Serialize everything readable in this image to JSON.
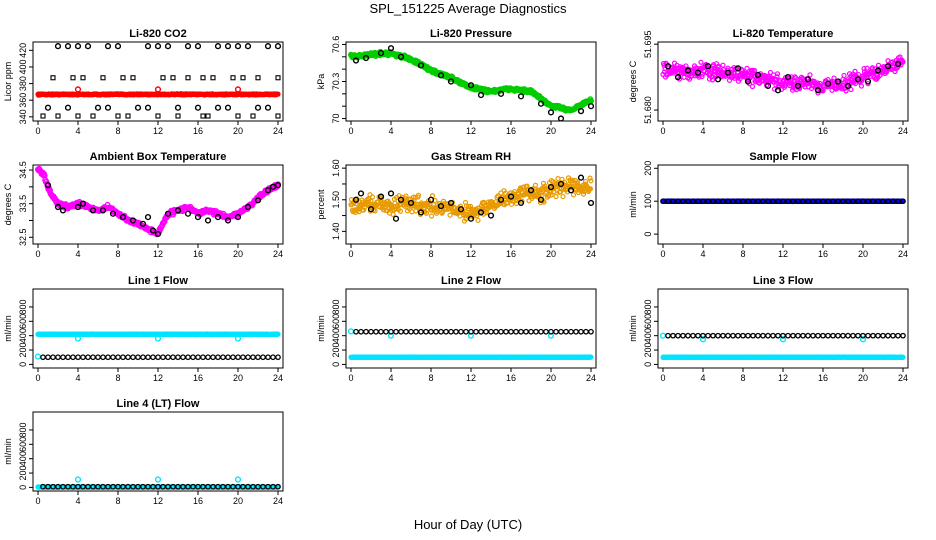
{
  "page": {
    "title": "SPL_151225  Average Diagnostics",
    "xlabel": "Hour of Day (UTC)"
  },
  "chart_data": [
    {
      "type": "scatter",
      "title": "Li-820 CO2",
      "ylabel": "Licor ppm",
      "ylim": [
        335,
        430
      ],
      "yticks": [
        340,
        360,
        380,
        400,
        420
      ],
      "xlim": [
        -0.5,
        24.5
      ],
      "xticks": [
        0,
        4,
        8,
        12,
        16,
        20,
        24
      ],
      "series": [
        {
          "color": "#ff0000",
          "style": "dense-line",
          "x_range": [
            0,
            24
          ],
          "mean": 367,
          "noise": 1
        },
        {
          "color": "#ff0000",
          "style": "ring",
          "x": [
            4,
            12,
            20
          ],
          "values": [
            373,
            373,
            373
          ]
        },
        {
          "color": "#000000",
          "style": "ring",
          "x": [
            2,
            3,
            4,
            5,
            7,
            8,
            11,
            12,
            13,
            15,
            16,
            18,
            19,
            20,
            21,
            23,
            24
          ],
          "values": [
            425,
            425,
            425,
            425,
            425,
            425,
            425,
            425,
            425,
            425,
            425,
            425,
            425,
            425,
            425,
            425,
            425
          ]
        },
        {
          "color": "#000000",
          "style": "square",
          "x": [
            1.5,
            3.5,
            4.5,
            6.5,
            8.5,
            9.5,
            12.5,
            13.5,
            15,
            16.5,
            17.5,
            19.5,
            20.5,
            22,
            24
          ],
          "values": [
            387,
            387,
            387,
            387,
            387,
            387,
            387,
            387,
            387,
            387,
            387,
            387,
            387,
            387,
            387
          ]
        },
        {
          "color": "#000000",
          "style": "ring",
          "x": [
            1,
            3,
            6,
            7,
            10,
            11,
            14,
            16,
            18,
            19,
            22,
            23
          ],
          "values": [
            351,
            351,
            351,
            351,
            351,
            351,
            351,
            351,
            351,
            351,
            351,
            351
          ]
        },
        {
          "color": "#000000",
          "style": "square",
          "x": [
            0.5,
            2,
            4,
            5.5,
            8,
            9,
            12,
            14,
            16.5,
            17,
            20,
            21.5,
            24
          ],
          "values": [
            341,
            341,
            341,
            341,
            341,
            341,
            341,
            341,
            341,
            341,
            341,
            341,
            341
          ]
        }
      ]
    },
    {
      "type": "scatter",
      "title": "Li-820 Pressure",
      "ylabel": "kPa",
      "ylim": [
        69.98,
        70.62
      ],
      "yticks": [
        70.0,
        70.3,
        70.6
      ],
      "yticks_minor": [
        70.1,
        70.2,
        70.4,
        70.5
      ],
      "xlim": [
        -0.5,
        24.5
      ],
      "xticks": [
        0,
        4,
        8,
        12,
        16,
        20,
        24
      ],
      "series": [
        {
          "color": "#00cc00",
          "style": "dense-band",
          "x": [
            0,
            2,
            4,
            6,
            8,
            10,
            12,
            14,
            16,
            18,
            20,
            22,
            24
          ],
          "values": [
            70.5,
            70.52,
            70.53,
            70.48,
            70.39,
            70.33,
            70.25,
            70.22,
            70.24,
            70.22,
            70.1,
            70.07,
            70.15
          ],
          "noise": 0.02
        },
        {
          "color": "#000000",
          "style": "ring",
          "x": [
            0.5,
            1.5,
            3,
            4,
            5,
            7,
            9,
            10,
            12,
            13,
            15,
            17,
            19,
            20,
            21,
            23,
            24
          ],
          "values": [
            70.47,
            70.49,
            70.53,
            70.57,
            70.5,
            70.43,
            70.35,
            70.3,
            70.27,
            70.19,
            70.2,
            70.18,
            70.12,
            70.05,
            70.0,
            70.06,
            70.1
          ]
        }
      ]
    },
    {
      "type": "scatter",
      "title": "Li-820 Temperature",
      "ylabel": "degrees C",
      "ylim": [
        51.6775,
        51.6955
      ],
      "yticks": [
        51.68,
        51.695
      ],
      "ytick_labels": [
        "51.680",
        "51.695"
      ],
      "xlim": [
        -0.5,
        24.5
      ],
      "xticks": [
        0,
        4,
        8,
        12,
        16,
        20,
        24
      ],
      "series": [
        {
          "color": "#ff00ff",
          "style": "cloud",
          "x": [
            0,
            2,
            4,
            6,
            8,
            10,
            12,
            14,
            16,
            18,
            20,
            22,
            24
          ],
          "values": [
            51.689,
            51.6885,
            51.689,
            51.6885,
            51.688,
            51.687,
            51.686,
            51.6865,
            51.6855,
            51.686,
            51.6875,
            51.689,
            51.691
          ],
          "noise": 0.0025
        },
        {
          "color": "#000000",
          "style": "ring",
          "x": [
            0.5,
            1.5,
            2.5,
            3.5,
            4.5,
            5.5,
            6.5,
            7.5,
            8.5,
            9.5,
            10.5,
            11.5,
            12.5,
            13.5,
            14.5,
            15.5,
            16.5,
            17.5,
            18.5,
            19.5,
            20.5,
            21.5,
            22.5,
            23.5
          ],
          "values": [
            51.69,
            51.6875,
            51.689,
            51.6885,
            51.69,
            51.687,
            51.6885,
            51.6895,
            51.6865,
            51.688,
            51.6855,
            51.6845,
            51.6875,
            51.6855,
            51.687,
            51.6845,
            51.686,
            51.6865,
            51.6855,
            51.687,
            51.6865,
            51.689,
            51.69,
            51.6905
          ]
        }
      ]
    },
    {
      "type": "scatter",
      "title": "Ambient Box Temperature",
      "ylabel": "degrees C",
      "ylim": [
        32.3,
        34.65
      ],
      "yticks": [
        32.5,
        33.5,
        34.5
      ],
      "yticks_minor": [
        33.0,
        34.0
      ],
      "xlim": [
        -0.5,
        24.5
      ],
      "xticks": [
        0,
        4,
        8,
        12,
        16,
        20,
        24
      ],
      "series": [
        {
          "color": "#ff00ff",
          "style": "dense-band",
          "x": [
            0,
            0.5,
            1,
            1.5,
            2,
            3,
            4,
            5,
            6,
            7,
            8,
            9,
            10,
            11,
            12,
            13,
            14,
            15,
            16,
            17,
            18,
            19,
            20,
            21,
            22,
            23,
            24
          ],
          "values": [
            34.55,
            34.4,
            34.0,
            33.7,
            33.5,
            33.4,
            33.5,
            33.4,
            33.3,
            33.4,
            33.2,
            33.0,
            32.9,
            32.75,
            32.6,
            33.2,
            33.3,
            33.4,
            33.2,
            33.3,
            33.2,
            33.1,
            33.2,
            33.4,
            33.65,
            33.9,
            34.05
          ],
          "noise": 0.08
        },
        {
          "color": "#000000",
          "style": "ring",
          "x": [
            1,
            2,
            2.5,
            4,
            4.5,
            5.5,
            6.5,
            7.5,
            8.5,
            9.5,
            10.5,
            11,
            11.5,
            12,
            13,
            14,
            15,
            16,
            17,
            18,
            19,
            20,
            21,
            22,
            23,
            23.5,
            24
          ],
          "values": [
            34.05,
            33.4,
            33.3,
            33.4,
            33.5,
            33.3,
            33.3,
            33.2,
            33.1,
            33.0,
            32.9,
            33.1,
            32.7,
            32.6,
            33.2,
            33.3,
            33.2,
            33.1,
            33.0,
            33.1,
            33.0,
            33.1,
            33.4,
            33.6,
            33.9,
            34.0,
            34.05
          ]
        }
      ]
    },
    {
      "type": "scatter",
      "title": "Gas Stream RH",
      "ylabel": "percent",
      "ylim": [
        1.36,
        1.61
      ],
      "yticks": [
        1.4,
        1.5,
        1.6
      ],
      "ytick_labels": [
        "1.40",
        "1.50",
        "1.60"
      ],
      "yticks_minor": [
        1.45,
        1.55
      ],
      "xlim": [
        -0.5,
        24.5
      ],
      "xticks": [
        0,
        4,
        8,
        12,
        16,
        20,
        24
      ],
      "series": [
        {
          "color": "#e89a00",
          "style": "cloud",
          "x": [
            0,
            2,
            4,
            6,
            8,
            10,
            12,
            14,
            16,
            18,
            20,
            22,
            24
          ],
          "values": [
            1.48,
            1.49,
            1.48,
            1.49,
            1.48,
            1.47,
            1.46,
            1.48,
            1.51,
            1.52,
            1.53,
            1.55,
            1.54
          ],
          "noise": 0.04
        },
        {
          "color": "#000000",
          "style": "ring",
          "x": [
            0.5,
            1,
            2,
            3,
            4,
            4.5,
            5,
            6,
            7,
            8,
            9,
            10,
            11,
            12,
            13,
            14,
            15,
            16,
            17,
            18,
            19,
            20,
            21,
            22,
            23,
            24
          ],
          "values": [
            1.5,
            1.52,
            1.47,
            1.51,
            1.52,
            1.44,
            1.5,
            1.49,
            1.46,
            1.5,
            1.48,
            1.49,
            1.47,
            1.44,
            1.46,
            1.45,
            1.5,
            1.51,
            1.49,
            1.53,
            1.5,
            1.54,
            1.55,
            1.53,
            1.57,
            1.49
          ]
        }
      ]
    },
    {
      "type": "scatter",
      "title": "Sample Flow",
      "ylabel": "ml/min",
      "ylim": [
        -30,
        210
      ],
      "yticks": [
        0,
        100,
        200
      ],
      "xlim": [
        -0.5,
        24.5
      ],
      "xticks": [
        0,
        4,
        8,
        12,
        16,
        20,
        24
      ],
      "series": [
        {
          "color": "#0000ff",
          "style": "dense-line",
          "x_range": [
            0,
            24
          ],
          "mean": 100,
          "noise": 1
        },
        {
          "color": "#000000",
          "style": "ring-row",
          "x_range": [
            0,
            24
          ],
          "mean": 100
        }
      ]
    },
    {
      "type": "scatter",
      "title": "Line 1 Flow",
      "ylabel": "ml/min",
      "ylim": [
        -50,
        1050
      ],
      "yticks": [
        0,
        200,
        400,
        600,
        800
      ],
      "xlim": [
        -0.5,
        24.5
      ],
      "xticks": [
        0,
        4,
        8,
        12,
        16,
        20,
        24
      ],
      "series": [
        {
          "color": "#00e5ff",
          "style": "dense-line",
          "x_range": [
            0,
            24
          ],
          "mean": 420,
          "noise": 5
        },
        {
          "color": "#00e5ff",
          "style": "ring",
          "x": [
            0,
            4,
            12,
            20
          ],
          "values": [
            110,
            360,
            360,
            360
          ]
        },
        {
          "color": "#000000",
          "style": "ring-row",
          "x_range": [
            0.5,
            24
          ],
          "mean": 100
        }
      ]
    },
    {
      "type": "scatter",
      "title": "Line 2 Flow",
      "ylabel": "ml/min",
      "ylim": [
        -50,
        1050
      ],
      "yticks": [
        0,
        200,
        400,
        600,
        800
      ],
      "xlim": [
        -0.5,
        24.5
      ],
      "xticks": [
        0,
        4,
        8,
        12,
        16,
        20,
        24
      ],
      "series": [
        {
          "color": "#00e5ff",
          "style": "dense-line",
          "x_range": [
            0,
            24
          ],
          "mean": 100,
          "noise": 5
        },
        {
          "color": "#00e5ff",
          "style": "ring",
          "x": [
            0,
            4,
            12,
            20
          ],
          "values": [
            460,
            400,
            400,
            400
          ]
        },
        {
          "color": "#000000",
          "style": "ring-row",
          "x_range": [
            0.5,
            24
          ],
          "mean": 455
        }
      ]
    },
    {
      "type": "scatter",
      "title": "Line 3 Flow",
      "ylabel": "ml/min",
      "ylim": [
        -50,
        1050
      ],
      "yticks": [
        0,
        200,
        400,
        600,
        800
      ],
      "xlim": [
        -0.5,
        24.5
      ],
      "xticks": [
        0,
        4,
        8,
        12,
        16,
        20,
        24
      ],
      "series": [
        {
          "color": "#00e5ff",
          "style": "dense-line",
          "x_range": [
            0,
            24
          ],
          "mean": 100,
          "noise": 5
        },
        {
          "color": "#00e5ff",
          "style": "ring",
          "x": [
            0,
            4,
            12,
            20
          ],
          "values": [
            400,
            350,
            350,
            350
          ]
        },
        {
          "color": "#000000",
          "style": "ring-row",
          "x_range": [
            0.5,
            24
          ],
          "mean": 400
        }
      ]
    },
    {
      "type": "scatter",
      "title": "Line 4 (LT) Flow",
      "ylabel": "ml/min",
      "ylim": [
        -50,
        1050
      ],
      "yticks": [
        0,
        200,
        400,
        600,
        800
      ],
      "xlim": [
        -0.5,
        24.5
      ],
      "xticks": [
        0,
        4,
        8,
        12,
        16,
        20,
        24
      ],
      "series": [
        {
          "color": "#00e5ff",
          "style": "dense-line",
          "x_range": [
            0,
            24
          ],
          "mean": 5,
          "noise": 3
        },
        {
          "color": "#00e5ff",
          "style": "ring",
          "x": [
            4,
            12,
            20
          ],
          "values": [
            110,
            110,
            110
          ]
        },
        {
          "color": "#000000",
          "style": "ring-row",
          "x_range": [
            0.5,
            24
          ],
          "mean": 10
        }
      ]
    }
  ]
}
